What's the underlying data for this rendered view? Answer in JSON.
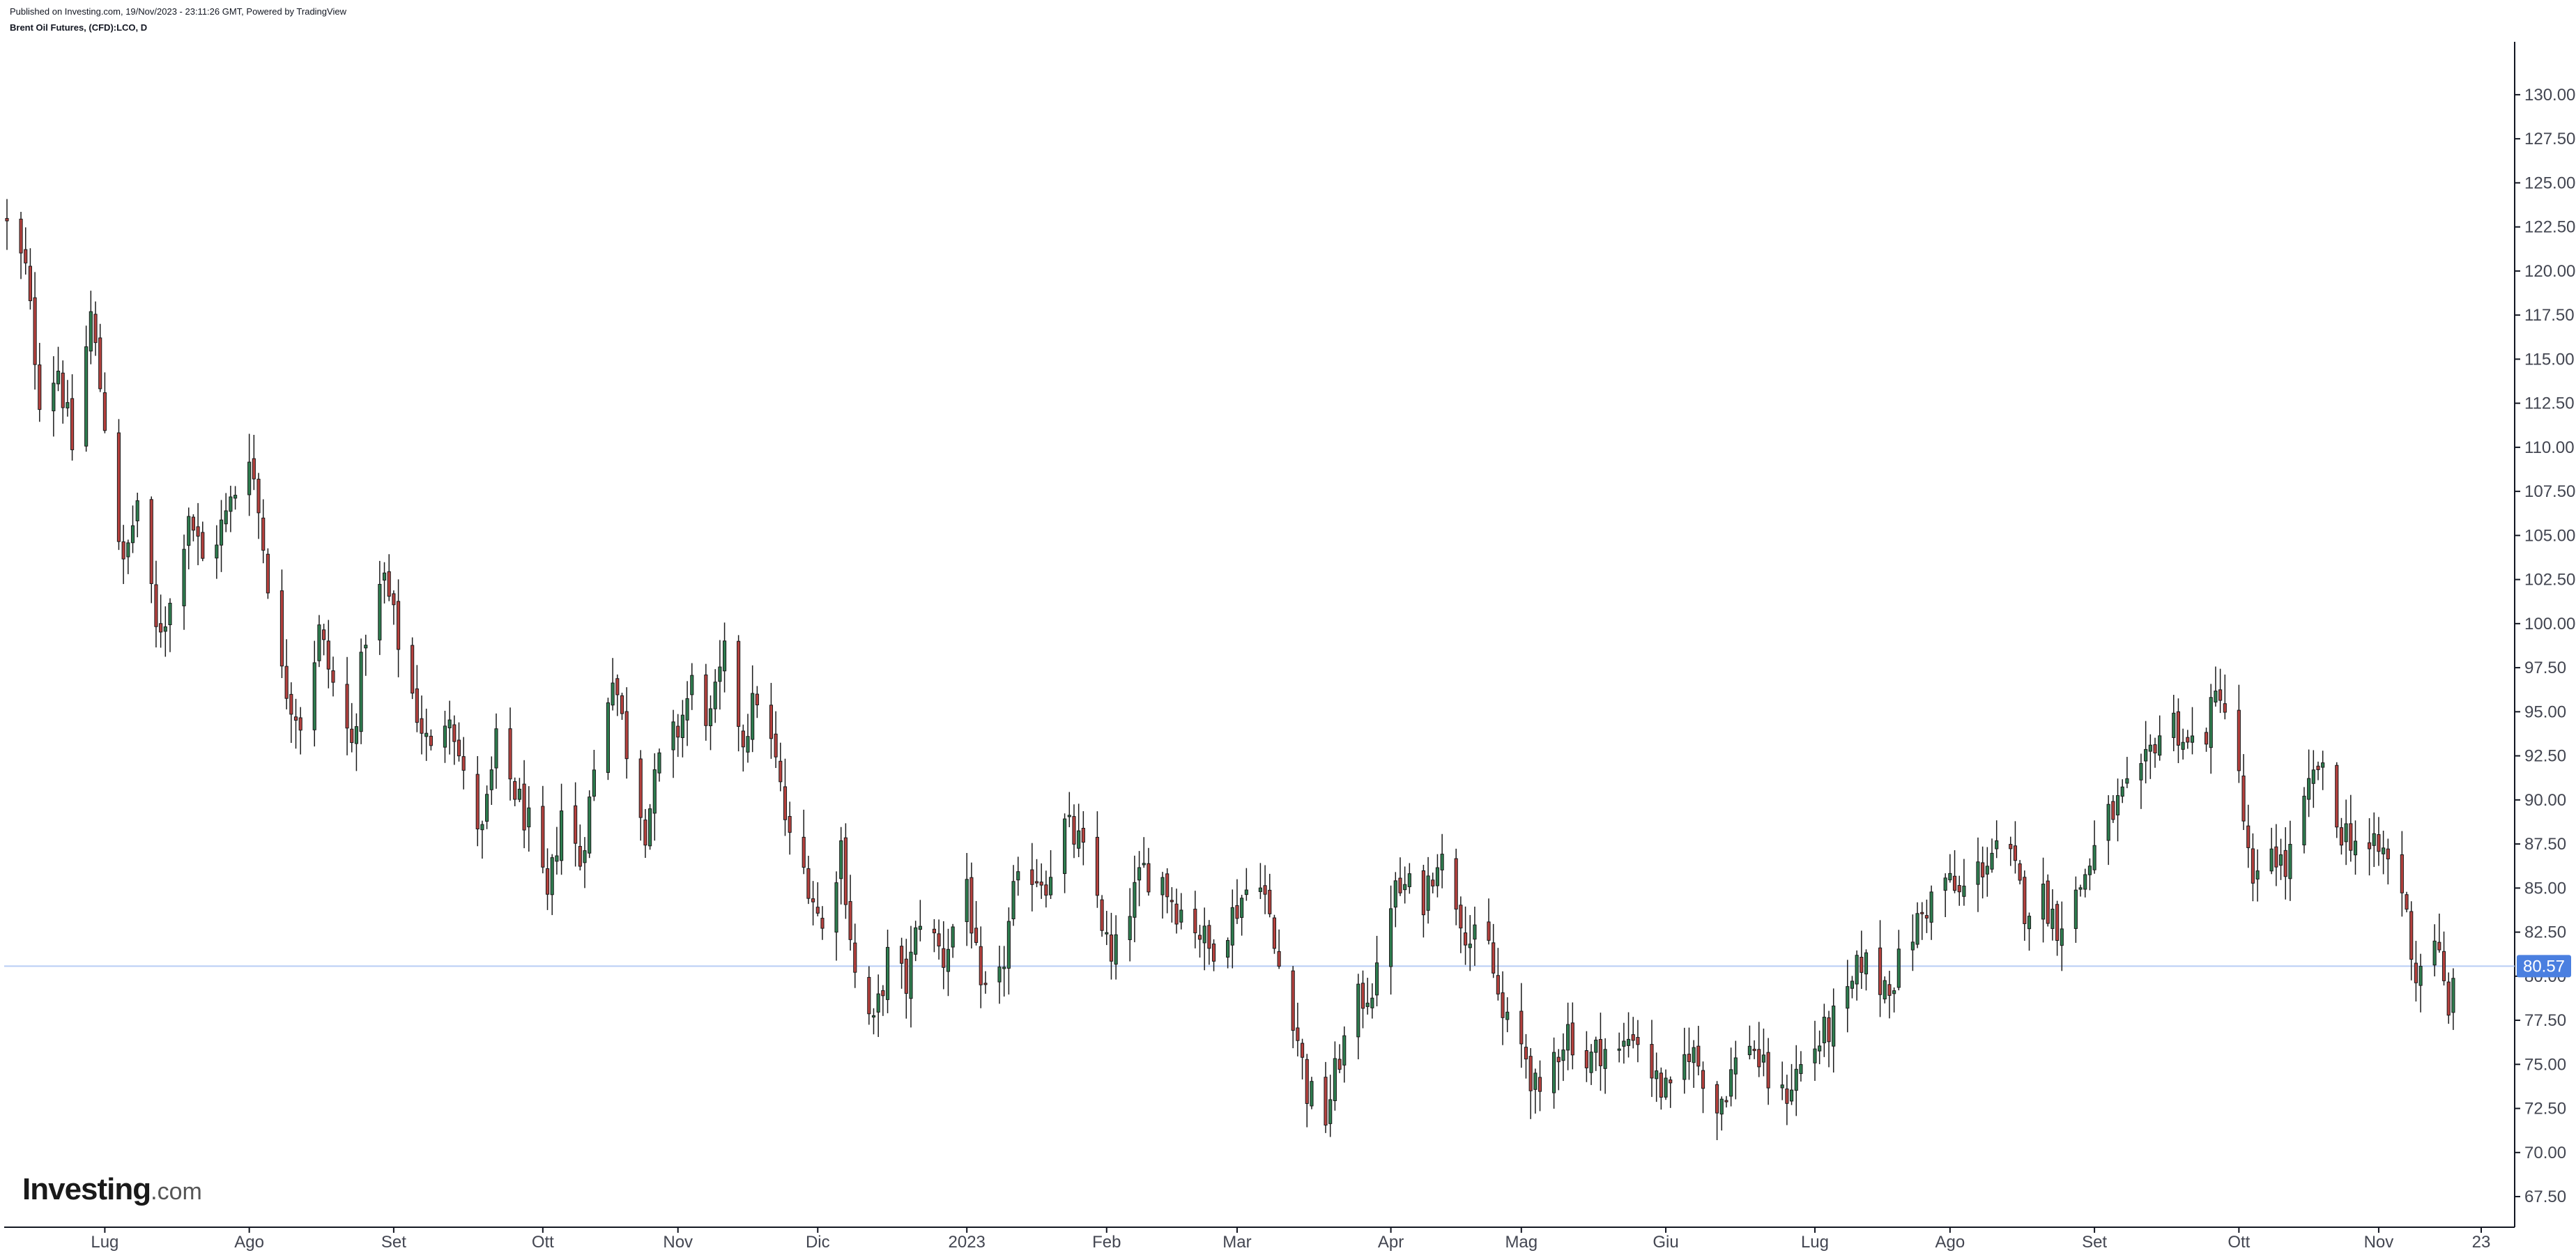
{
  "header": {
    "published": "Published on Investing.com, 19/Nov/2023 - 23:11:26 GMT, Powered by TradingView",
    "symbol": "Brent Oil Futures, (CFD):LCO, D"
  },
  "logo": {
    "brand": "Investing",
    "suffix": ".com"
  },
  "colors": {
    "up": "#2e7d4f",
    "down": "#b5413e",
    "wick": "#1a1a1a",
    "price_line": "#b8cdf5",
    "price_badge": "#4a7fe0",
    "axis": "#131722"
  },
  "chart_data": {
    "type": "candlestick",
    "title": "",
    "xlabel": "",
    "ylabel": "",
    "ylim": [
      66.0,
      133.0
    ],
    "grid": false,
    "yticks": [
      "67.50",
      "70.00",
      "72.50",
      "75.00",
      "77.50",
      "80.00",
      "82.50",
      "85.00",
      "87.50",
      "90.00",
      "92.50",
      "95.00",
      "97.50",
      "100.00",
      "102.50",
      "105.00",
      "107.50",
      "110.00",
      "112.50",
      "115.00",
      "117.50",
      "120.00",
      "122.50",
      "125.00",
      "127.50",
      "130.00"
    ],
    "xticks": [
      {
        "label": "Lug",
        "date": "2022-07-01"
      },
      {
        "label": "Ago",
        "date": "2022-08-01"
      },
      {
        "label": "Set",
        "date": "2022-09-01"
      },
      {
        "label": "Ott",
        "date": "2022-10-03"
      },
      {
        "label": "Nov",
        "date": "2022-11-01"
      },
      {
        "label": "Dic",
        "date": "2022-12-01"
      },
      {
        "label": "2023",
        "date": "2023-01-02"
      },
      {
        "label": "Feb",
        "date": "2023-02-01"
      },
      {
        "label": "Mar",
        "date": "2023-03-01"
      },
      {
        "label": "Apr",
        "date": "2023-04-03"
      },
      {
        "label": "Mag",
        "date": "2023-05-01"
      },
      {
        "label": "Giu",
        "date": "2023-06-01"
      },
      {
        "label": "Lug",
        "date": "2023-07-03"
      },
      {
        "label": "Ago",
        "date": "2023-08-01"
      },
      {
        "label": "Set",
        "date": "2023-09-01"
      },
      {
        "label": "Ott",
        "date": "2023-10-02"
      },
      {
        "label": "Nov",
        "date": "2023-11-01"
      },
      {
        "label": "23",
        "date": "2023-11-23"
      }
    ],
    "last_price": 80.57,
    "last_price_label": "80.57",
    "series": [
      {
        "close_path": [
          [
            "2022-06-10",
            122.5
          ],
          [
            "2022-06-14",
            120.0
          ],
          [
            "2022-06-17",
            113.0
          ],
          [
            "2022-06-21",
            114.5
          ],
          [
            "2022-06-24",
            110.0
          ],
          [
            "2022-06-28",
            117.5
          ],
          [
            "2022-07-01",
            111.5
          ],
          [
            "2022-07-05",
            103.0
          ],
          [
            "2022-07-08",
            107.0
          ],
          [
            "2022-07-12",
            99.5
          ],
          [
            "2022-07-15",
            101.0
          ],
          [
            "2022-07-19",
            106.5
          ],
          [
            "2022-07-22",
            103.5
          ],
          [
            "2022-07-27",
            106.0
          ],
          [
            "2022-08-01",
            110.0
          ],
          [
            "2022-08-04",
            104.5
          ],
          [
            "2022-08-08",
            97.0
          ],
          [
            "2022-08-12",
            94.5
          ],
          [
            "2022-08-16",
            99.5
          ],
          [
            "2022-08-19",
            96.5
          ],
          [
            "2022-08-23",
            93.0
          ],
          [
            "2022-08-26",
            99.5
          ],
          [
            "2022-08-30",
            102.5
          ],
          [
            "2022-09-02",
            99.0
          ],
          [
            "2022-09-06",
            95.0
          ],
          [
            "2022-09-09",
            92.5
          ],
          [
            "2022-09-13",
            95.5
          ],
          [
            "2022-09-16",
            91.0
          ],
          [
            "2022-09-20",
            88.0
          ],
          [
            "2022-09-23",
            93.0
          ],
          [
            "2022-09-27",
            90.5
          ],
          [
            "2022-09-30",
            88.5
          ],
          [
            "2022-10-04",
            84.0
          ],
          [
            "2022-10-07",
            89.5
          ],
          [
            "2022-10-11",
            86.5
          ],
          [
            "2022-10-14",
            91.5
          ],
          [
            "2022-10-18",
            97.5
          ],
          [
            "2022-10-21",
            93.0
          ],
          [
            "2022-10-25",
            88.5
          ],
          [
            "2022-10-28",
            92.0
          ],
          [
            "2022-11-01",
            94.0
          ],
          [
            "2022-11-04",
            96.5
          ],
          [
            "2022-11-08",
            94.5
          ],
          [
            "2022-11-11",
            98.0
          ],
          [
            "2022-11-15",
            93.5
          ],
          [
            "2022-11-18",
            96.0
          ],
          [
            "2022-11-22",
            92.0
          ],
          [
            "2022-11-25",
            87.5
          ],
          [
            "2022-11-29",
            85.5
          ],
          [
            "2022-12-02",
            82.5
          ],
          [
            "2022-12-06",
            87.5
          ],
          [
            "2022-12-09",
            80.0
          ],
          [
            "2022-12-13",
            77.0
          ],
          [
            "2022-12-16",
            81.0
          ],
          [
            "2022-12-20",
            79.5
          ],
          [
            "2022-12-23",
            83.5
          ],
          [
            "2022-12-28",
            81.0
          ],
          [
            "2023-01-02",
            85.5
          ],
          [
            "2023-01-05",
            78.5
          ],
          [
            "2023-01-09",
            79.5
          ],
          [
            "2023-01-12",
            84.5
          ],
          [
            "2023-01-16",
            86.0
          ],
          [
            "2023-01-19",
            85.5
          ],
          [
            "2023-01-23",
            88.5
          ],
          [
            "2023-01-26",
            87.5
          ],
          [
            "2023-01-30",
            84.5
          ],
          [
            "2023-02-02",
            80.5
          ],
          [
            "2023-02-06",
            84.0
          ],
          [
            "2023-02-09",
            86.0
          ],
          [
            "2023-02-13",
            85.5
          ],
          [
            "2023-02-16",
            84.0
          ],
          [
            "2023-02-20",
            83.0
          ],
          [
            "2023-02-23",
            81.5
          ],
          [
            "2023-02-27",
            83.0
          ],
          [
            "2023-03-02",
            84.5
          ],
          [
            "2023-03-06",
            86.0
          ],
          [
            "2023-03-09",
            81.5
          ],
          [
            "2023-03-13",
            78.0
          ],
          [
            "2023-03-16",
            73.5
          ],
          [
            "2023-03-20",
            72.0
          ],
          [
            "2023-03-23",
            75.5
          ],
          [
            "2023-03-27",
            78.5
          ],
          [
            "2023-03-31",
            79.8
          ],
          [
            "2023-04-03",
            84.5
          ],
          [
            "2023-04-06",
            85.0
          ],
          [
            "2023-04-10",
            84.5
          ],
          [
            "2023-04-13",
            87.0
          ],
          [
            "2023-04-17",
            84.5
          ],
          [
            "2023-04-20",
            82.0
          ],
          [
            "2023-04-24",
            81.5
          ],
          [
            "2023-04-27",
            77.5
          ],
          [
            "2023-05-02",
            75.5
          ],
          [
            "2023-05-05",
            72.5
          ],
          [
            "2023-05-08",
            75.5
          ],
          [
            "2023-05-11",
            77.0
          ],
          [
            "2023-05-15",
            75.0
          ],
          [
            "2023-05-18",
            76.0
          ],
          [
            "2023-05-22",
            75.5
          ],
          [
            "2023-05-25",
            77.0
          ],
          [
            "2023-05-30",
            74.0
          ],
          [
            "2023-06-02",
            73.0
          ],
          [
            "2023-06-06",
            76.0
          ],
          [
            "2023-06-09",
            74.5
          ],
          [
            "2023-06-12",
            72.5
          ],
          [
            "2023-06-15",
            74.5
          ],
          [
            "2023-06-19",
            76.5
          ],
          [
            "2023-06-22",
            74.5
          ],
          [
            "2023-06-26",
            73.0
          ],
          [
            "2023-06-29",
            74.5
          ],
          [
            "2023-07-03",
            76.0
          ],
          [
            "2023-07-06",
            77.0
          ],
          [
            "2023-07-10",
            78.5
          ],
          [
            "2023-07-13",
            81.0
          ],
          [
            "2023-07-17",
            79.5
          ],
          [
            "2023-07-20",
            80.0
          ],
          [
            "2023-07-24",
            82.5
          ],
          [
            "2023-07-27",
            84.0
          ],
          [
            "2023-07-31",
            85.5
          ],
          [
            "2023-08-03",
            84.5
          ],
          [
            "2023-08-07",
            86.0
          ],
          [
            "2023-08-10",
            87.0
          ],
          [
            "2023-08-14",
            86.5
          ],
          [
            "2023-08-17",
            84.0
          ],
          [
            "2023-08-21",
            84.5
          ],
          [
            "2023-08-24",
            83.0
          ],
          [
            "2023-08-28",
            84.5
          ],
          [
            "2023-08-31",
            86.5
          ],
          [
            "2023-09-04",
            89.0
          ],
          [
            "2023-09-07",
            90.0
          ],
          [
            "2023-09-11",
            91.0
          ],
          [
            "2023-09-14",
            93.5
          ],
          [
            "2023-09-18",
            94.5
          ],
          [
            "2023-09-21",
            93.0
          ],
          [
            "2023-09-25",
            94.0
          ],
          [
            "2023-09-28",
            96.5
          ],
          [
            "2023-10-02",
            91.0
          ],
          [
            "2023-10-05",
            84.5
          ],
          [
            "2023-10-09",
            87.5
          ],
          [
            "2023-10-12",
            86.0
          ],
          [
            "2023-10-16",
            89.5
          ],
          [
            "2023-10-19",
            92.0
          ],
          [
            "2023-10-23",
            88.5
          ],
          [
            "2023-10-26",
            88.0
          ],
          [
            "2023-10-30",
            87.0
          ],
          [
            "2023-11-02",
            87.0
          ],
          [
            "2023-11-06",
            85.0
          ],
          [
            "2023-11-09",
            80.0
          ],
          [
            "2023-11-13",
            82.5
          ],
          [
            "2023-11-16",
            77.5
          ],
          [
            "2023-11-17",
            80.6
          ]
        ]
      }
    ]
  }
}
